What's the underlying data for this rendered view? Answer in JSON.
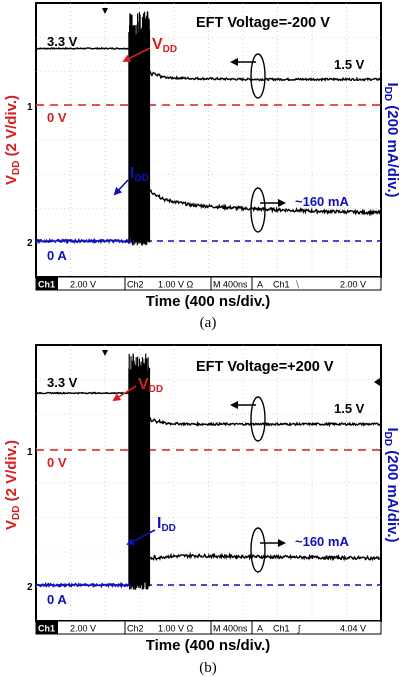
{
  "colors": {
    "vdd_ref": "#d81e1e",
    "idd_ref": "#1010b8",
    "trace": "#000000",
    "grid": "#b8b8b8"
  },
  "y_axis_left": {
    "main": "V",
    "sub": "DD",
    "rest": " (2 V/div.)"
  },
  "y_axis_right": {
    "main": "I",
    "sub": "DD",
    "rest": " (200 mA/div.)"
  },
  "panels": [
    {
      "caption": "(a)",
      "title": "EFT Voltage=-200 V",
      "vdd_high_label": "3.3 V",
      "vdd_low_label": "1.5 V",
      "vdd_ref_label": "0 V",
      "idd_ref_label": "0 A",
      "idd_value_label": "~160 mA",
      "vdd_arrow": {
        "main": "V",
        "sub": "DD"
      },
      "idd_arrow": {
        "main": "I",
        "sub": "DD"
      },
      "ch1_marker": "1",
      "ch2_marker": "2",
      "status": {
        "ch1": "Ch1",
        "ch1_scale": "2.00 V",
        "ch2": "Ch2",
        "ch2_scale": "1.00 V Ω",
        "m": "M",
        "timebase": "400ns",
        "a": "A",
        "trig_ch": "Ch1",
        "trig_slope": "⧹",
        "trig_level": "2.00 V"
      },
      "xlabel": "Time (400 ns/div.)"
    },
    {
      "caption": "(b)",
      "title": "EFT Voltage=+200 V",
      "vdd_high_label": "3.3 V",
      "vdd_low_label": "1.5 V",
      "vdd_ref_label": "0 V",
      "idd_ref_label": "0 A",
      "idd_value_label": "~160 mA",
      "vdd_arrow": {
        "main": "V",
        "sub": "DD"
      },
      "idd_arrow": {
        "main": "I",
        "sub": "DD"
      },
      "ch1_marker": "1",
      "ch2_marker": "2",
      "status": {
        "ch1": "Ch1",
        "ch1_scale": "2.00 V",
        "ch2": "Ch2",
        "ch2_scale": "1.00 V Ω",
        "m": "M",
        "timebase": "400ns",
        "a": "A",
        "trig_ch": "Ch1",
        "trig_slope": "∫",
        "trig_level": "4.04 V"
      },
      "xlabel": "Time (400 ns/div.)"
    }
  ],
  "chart_data": [
    {
      "type": "line",
      "title": "EFT Voltage=-200 V",
      "xlabel": "Time (400 ns/div.)",
      "ylabel": "VDD (2 V/div.)",
      "ylabel_right": "IDD (200 mA/div.)",
      "x_unit": "ns",
      "xlim": [
        0,
        4000
      ],
      "grid": true,
      "series": [
        {
          "name": "VDD",
          "unit": "V",
          "x": [
            0,
            800,
            1100,
            1200,
            1300,
            1500,
            1800,
            2400,
            3200,
            4000
          ],
          "values": [
            3.3,
            3.3,
            3.3,
            2.6,
            1.9,
            1.6,
            1.55,
            1.5,
            1.5,
            1.5
          ]
        },
        {
          "name": "IDD",
          "unit": "mA",
          "x": [
            0,
            800,
            1100,
            1200,
            1300,
            1500,
            1800,
            2400,
            3200,
            4000
          ],
          "values": [
            0,
            0,
            0,
            350,
            300,
            240,
            210,
            190,
            175,
            165
          ]
        }
      ],
      "annotations": [
        "3.3 V",
        "1.5 V",
        "0 V",
        "0 A",
        "~160 mA"
      ]
    },
    {
      "type": "line",
      "title": "EFT Voltage=+200 V",
      "xlabel": "Time (400 ns/div.)",
      "ylabel": "VDD (2 V/div.)",
      "ylabel_right": "IDD (200 mA/div.)",
      "x_unit": "ns",
      "xlim": [
        0,
        4000
      ],
      "grid": true,
      "series": [
        {
          "name": "VDD",
          "unit": "V",
          "x": [
            0,
            800,
            1100,
            1200,
            1300,
            1500,
            1800,
            2400,
            3200,
            4000
          ],
          "values": [
            3.3,
            3.3,
            3.3,
            2.5,
            1.8,
            1.55,
            1.5,
            1.5,
            1.5,
            1.5
          ]
        },
        {
          "name": "IDD",
          "unit": "mA",
          "x": [
            0,
            800,
            1100,
            1200,
            1300,
            1500,
            1800,
            2400,
            3200,
            4000
          ],
          "values": [
            0,
            0,
            0,
            120,
            150,
            165,
            170,
            165,
            160,
            155
          ]
        }
      ],
      "annotations": [
        "3.3 V",
        "1.5 V",
        "0 V",
        "0 A",
        "~160 mA"
      ]
    }
  ]
}
